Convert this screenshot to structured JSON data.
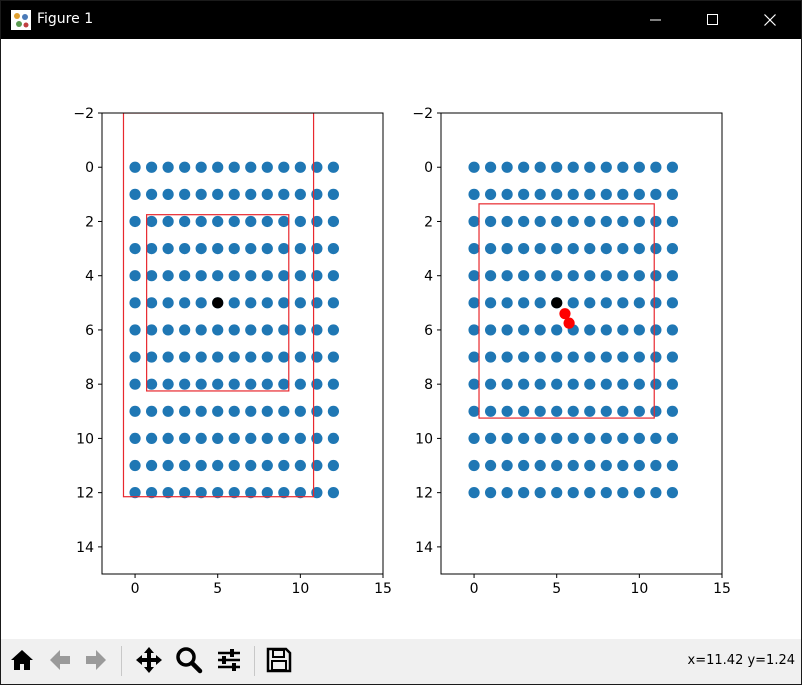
{
  "window": {
    "title": "Figure 1",
    "icons": {
      "app": "matplotlib-figure-icon",
      "minimize": "minimize-icon",
      "maximize": "maximize-icon",
      "close": "close-icon"
    }
  },
  "toolbar": {
    "buttons": [
      {
        "name": "home-button",
        "icon": "home-icon"
      },
      {
        "name": "back-button",
        "icon": "back-arrow-icon"
      },
      {
        "name": "forward-button",
        "icon": "forward-arrow-icon"
      },
      {
        "name": "pan-button",
        "icon": "move-icon"
      },
      {
        "name": "zoom-button",
        "icon": "magnifier-icon"
      },
      {
        "name": "configure-subplots-button",
        "icon": "sliders-icon"
      },
      {
        "name": "save-button",
        "icon": "floppy-disk-icon"
      }
    ],
    "coords": "x=11.42 y=1.24"
  },
  "colors": {
    "grid_point": "#1f77b4",
    "center_point": "#000000",
    "highlight_point": "#ff0000",
    "rect": "#e8282e",
    "titlebar": "#000000",
    "toolbar": "#f0f0f0"
  },
  "chart_data": [
    {
      "type": "scatter",
      "xlim": [
        -2,
        15
      ],
      "ylim": [
        15,
        -2
      ],
      "xticks": [
        0,
        5,
        10,
        15
      ],
      "yticks": [
        -2,
        0,
        2,
        4,
        6,
        8,
        10,
        12,
        14
      ],
      "grid": false,
      "grid_points": {
        "x_range": [
          0,
          12
        ],
        "y_range": [
          0,
          12
        ],
        "step": 1
      },
      "center_point": {
        "x": 5,
        "y": 5
      },
      "highlight_points": [],
      "rectangles": [
        {
          "x0": -0.7,
          "x1": 10.8,
          "y0": -2,
          "y1": 12.15
        },
        {
          "x0": 0.7,
          "x1": 9.3,
          "y0": 1.75,
          "y1": 8.25
        }
      ]
    },
    {
      "type": "scatter",
      "xlim": [
        -2,
        15
      ],
      "ylim": [
        15,
        -2
      ],
      "xticks": [
        0,
        5,
        10,
        15
      ],
      "yticks": [
        -2,
        0,
        2,
        4,
        6,
        8,
        10,
        12,
        14
      ],
      "grid": false,
      "grid_points": {
        "x_range": [
          0,
          12
        ],
        "y_range": [
          0,
          12
        ],
        "step": 1
      },
      "center_point": {
        "x": 5,
        "y": 5
      },
      "highlight_points": [
        {
          "x": 5.5,
          "y": 5.4
        },
        {
          "x": 5.75,
          "y": 5.75
        }
      ],
      "rectangles": [
        {
          "x0": 0.3,
          "x1": 10.9,
          "y0": 1.35,
          "y1": 9.25
        }
      ]
    }
  ]
}
